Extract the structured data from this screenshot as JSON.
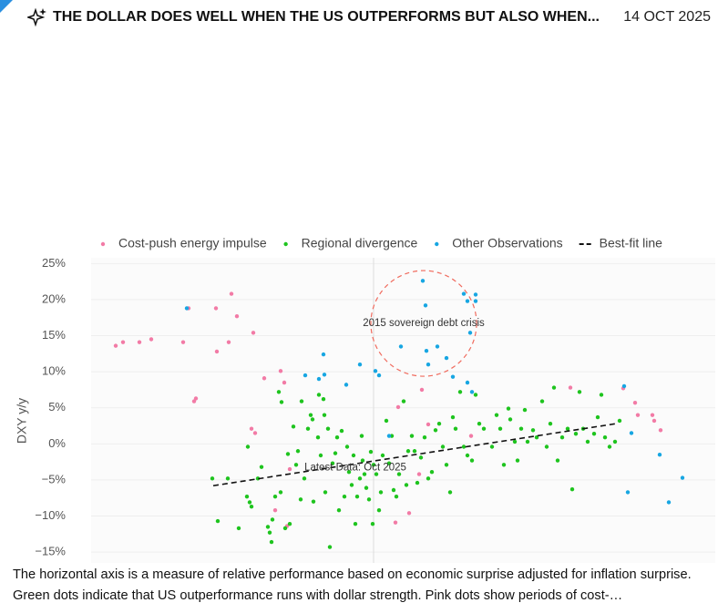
{
  "header": {
    "title": "THE DOLLAR DOES WELL WHEN THE US OUTPERFORMS BUT ALSO WHEN...",
    "date": "14 OCT 2025"
  },
  "chart_data": {
    "type": "scatter",
    "y_label": "DXY y/y",
    "xlim": [
      -3.1,
      3.75
    ],
    "ylim": [
      -16.5,
      25.8
    ],
    "yticks": [
      {
        "value": 25,
        "label": "25%"
      },
      {
        "value": 20,
        "label": "20%"
      },
      {
        "value": 15,
        "label": "15%"
      },
      {
        "value": 10,
        "label": "10%"
      },
      {
        "value": 5,
        "label": "5%"
      },
      {
        "value": 0,
        "label": "0%"
      },
      {
        "value": -5,
        "label": "−5%"
      },
      {
        "value": -10,
        "label": "−10%"
      },
      {
        "value": -15,
        "label": "−15%"
      }
    ],
    "grid": true,
    "series": [
      {
        "name": "Cost-push energy impulse",
        "color": "#f27ba6",
        "mark": "dot",
        "x": [
          -2.83,
          -2.75,
          -2.57,
          -2.44,
          -2.09,
          -2.03,
          -1.73,
          -1.72,
          -1.59,
          -1.56,
          -1.5,
          -1.32,
          -1.97,
          -1.95,
          -1.34,
          -1.3,
          -1.2,
          -1.02,
          -0.98,
          -0.92,
          -1.08,
          -0.95,
          0.27,
          0.6,
          0.53,
          0.39,
          0.24,
          1.07,
          2.16,
          2.74,
          2.87,
          2.9,
          3.06,
          3.08,
          3.15,
          0.5
        ],
        "values": [
          13.6,
          14.1,
          14.1,
          14.5,
          14.1,
          18.8,
          18.8,
          12.8,
          14.1,
          20.8,
          17.7,
          15.4,
          5.9,
          6.3,
          2.1,
          1.5,
          9.1,
          10.1,
          8.5,
          -3.5,
          -9.2,
          -11.4,
          5.1,
          2.7,
          7.5,
          -9.6,
          -10.9,
          1.1,
          7.8,
          7.7,
          5.7,
          4.0,
          4.0,
          3.2,
          1.9,
          -4.2
        ]
      },
      {
        "name": "Regional divergence",
        "color": "#1ec41e",
        "mark": "dot",
        "x": [
          -1.77,
          -1.71,
          -1.6,
          -1.48,
          -1.39,
          -1.36,
          -1.34,
          -1.38,
          -1.27,
          -1.23,
          -1.16,
          -1.14,
          -1.12,
          -1.11,
          -1.08,
          -1.04,
          -1.01,
          -1.02,
          -0.97,
          -0.94,
          -0.92,
          -0.88,
          -0.85,
          -0.83,
          -0.8,
          -0.79,
          -0.76,
          -0.72,
          -0.69,
          -0.67,
          -0.66,
          -0.61,
          -0.6,
          -0.58,
          -0.55,
          -0.54,
          -0.53,
          -0.5,
          -0.48,
          -0.45,
          -0.42,
          -0.4,
          -0.38,
          -0.35,
          -0.32,
          -0.29,
          -0.27,
          -0.24,
          -0.22,
          -0.2,
          -0.18,
          -0.15,
          -0.13,
          -0.12,
          -0.1,
          -0.08,
          -0.05,
          -0.03,
          -0.01,
          0.0,
          0.03,
          0.06,
          0.08,
          0.1,
          0.14,
          0.17,
          0.2,
          0.22,
          0.25,
          0.28,
          0.33,
          0.36,
          0.38,
          0.42,
          0.45,
          0.48,
          0.52,
          0.56,
          0.6,
          0.64,
          0.68,
          0.72,
          0.76,
          0.8,
          0.84,
          0.87,
          0.9,
          0.95,
          0.99,
          1.03,
          1.08,
          1.12,
          1.16,
          1.21,
          1.3,
          1.35,
          1.39,
          1.43,
          1.48,
          1.5,
          1.55,
          1.58,
          1.62,
          1.66,
          1.69,
          1.75,
          1.79,
          1.85,
          1.9,
          1.94,
          1.98,
          2.02,
          2.07,
          2.13,
          2.18,
          2.22,
          2.26,
          2.3,
          2.35,
          2.42,
          2.46,
          2.5,
          2.54,
          2.59,
          2.65,
          2.7
        ],
        "values": [
          -4.8,
          -10.7,
          -4.8,
          -11.7,
          -7.3,
          -8.1,
          -8.7,
          -0.4,
          -4.8,
          -3.2,
          -11.5,
          -12.3,
          -13.6,
          -10.5,
          -7.3,
          7.2,
          5.8,
          -6.7,
          -11.7,
          -1.4,
          -11.1,
          2.4,
          -2.9,
          -1.0,
          -7.7,
          5.9,
          -4.8,
          2.1,
          4.0,
          3.4,
          -8.0,
          0.9,
          6.8,
          -1.6,
          6.2,
          4.0,
          -6.7,
          2.1,
          -14.3,
          -2.7,
          -1.3,
          0.9,
          -9.2,
          1.8,
          -7.3,
          -0.4,
          -3.9,
          -5.7,
          -1.6,
          -11.1,
          -7.3,
          -4.8,
          1.1,
          -2.3,
          -4.2,
          -6.1,
          -7.7,
          -1.1,
          -11.1,
          -2.9,
          -4.2,
          -9.2,
          -6.7,
          -1.6,
          3.2,
          -2.7,
          1.1,
          -6.4,
          -7.3,
          -4.2,
          5.9,
          -5.7,
          -1.0,
          1.1,
          -1.0,
          -5.4,
          -1.9,
          0.9,
          -4.8,
          -3.9,
          1.9,
          2.8,
          -0.4,
          -2.9,
          -6.7,
          3.7,
          2.1,
          7.2,
          -0.4,
          -1.6,
          -2.3,
          6.8,
          2.8,
          2.1,
          -0.4,
          4.0,
          2.1,
          -2.9,
          4.9,
          3.4,
          0.3,
          -2.3,
          2.1,
          4.7,
          0.3,
          1.9,
          0.9,
          5.9,
          -0.4,
          2.8,
          7.8,
          -2.3,
          0.9,
          2.1,
          -6.3,
          1.4,
          7.2,
          2.1,
          0.3,
          1.4,
          3.7,
          6.8,
          0.9,
          -0.4,
          0.3,
          3.2
        ]
      },
      {
        "name": "Other Observations",
        "color": "#17a6e2",
        "mark": "dot",
        "x": [
          -2.05,
          -0.55,
          -0.54,
          -0.75,
          -0.6,
          -0.3,
          -0.15,
          0.02,
          0.06,
          0.17,
          0.3,
          0.54,
          0.57,
          0.58,
          0.6,
          0.7,
          0.8,
          0.87,
          0.99,
          1.03,
          1.12,
          1.12,
          1.06,
          1.03,
          1.08,
          2.75,
          2.83,
          2.79,
          3.14,
          3.24,
          3.39
        ],
        "values": [
          18.8,
          12.4,
          9.6,
          9.5,
          9.0,
          8.2,
          11.0,
          10.1,
          9.5,
          1.1,
          13.5,
          22.6,
          19.2,
          12.9,
          11.0,
          13.5,
          11.9,
          9.3,
          20.8,
          19.8,
          20.7,
          19.8,
          15.4,
          8.5,
          7.2,
          8.0,
          1.5,
          -6.7,
          -1.5,
          -8.1,
          -4.7
        ]
      },
      {
        "name": "Best-fit line",
        "color": "#111111",
        "mark": "dashed-line",
        "x": [
          -1.76,
          2.66
        ],
        "values": [
          -5.8,
          2.8
        ]
      }
    ],
    "annotations": [
      {
        "text": "2015 sovereign debt crisis",
        "x": 0.55,
        "y": 16.7,
        "circle": true
      },
      {
        "text": "Latest Data: Oct 2025",
        "x": -0.2,
        "y": -3.3,
        "circle": false
      }
    ]
  },
  "caption": "The horizontal axis is a measure of relative performance based on economic surprise adjusted for inflation surprise. Green dots indicate that US outperformance runs with dollar strength. Pink dots show periods of cost-…"
}
